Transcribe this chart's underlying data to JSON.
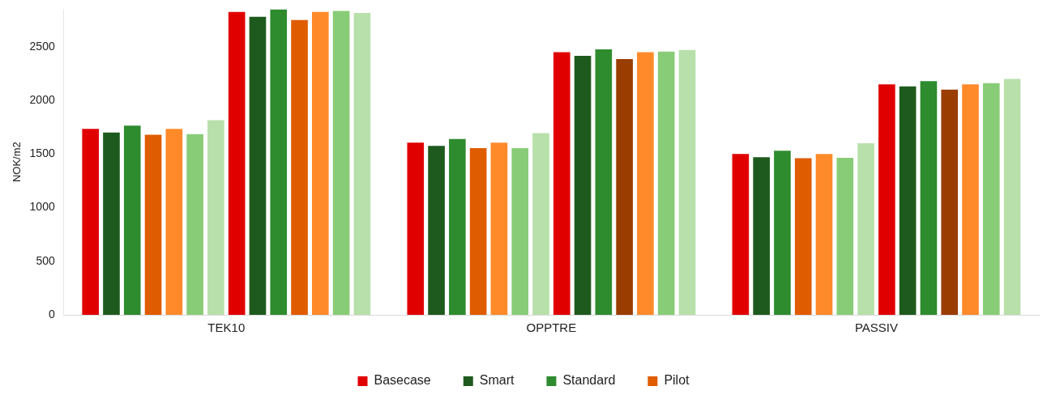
{
  "chart_data": {
    "type": "bar",
    "ylabel": "NOK/m2",
    "categories": [
      "TEK10",
      "OPPTRE",
      "PASSIV"
    ],
    "yticks": [
      0,
      500,
      1000,
      1500,
      2000,
      2500
    ],
    "grid": false,
    "legend": "bottom",
    "ylim": [
      0,
      2850
    ],
    "series": [
      {
        "name": "Basecase",
        "color": "#e00000",
        "values": [
          1735,
          1605,
          1500
        ]
      },
      {
        "name": "Smart",
        "color": "#1e5a1e",
        "values": [
          1700,
          1575,
          1470
        ]
      },
      {
        "name": "Standard",
        "color": "#2e8b2e",
        "values": [
          1765,
          1640,
          1530
        ]
      },
      {
        "name": "Pilot",
        "color": "#e05c00",
        "values": [
          1680,
          1555,
          1460
        ]
      },
      {
        "color": "#ff8a2a",
        "values": [
          1735,
          1605,
          1500
        ]
      },
      {
        "color": "#88cc77",
        "values": [
          1685,
          1555,
          1465
        ]
      },
      {
        "color": "#b8e0aa",
        "values": [
          1815,
          1695,
          1600
        ]
      },
      {
        "color": "#e00000",
        "values": [
          2825,
          2450,
          2150
        ]
      },
      {
        "color": "#1e5a1e",
        "values": [
          2780,
          2415,
          2130
        ]
      },
      {
        "color": "#2e8b2e",
        "values": [
          2850,
          2475,
          2180
        ]
      },
      {
        "colors": [
          "#e05c00",
          "#993d00",
          "#993d00"
        ],
        "values": [
          2750,
          2385,
          2100
        ]
      },
      {
        "color": "#ff8a2a",
        "values": [
          2825,
          2450,
          2150
        ]
      },
      {
        "color": "#88cc77",
        "values": [
          2835,
          2455,
          2160
        ]
      },
      {
        "color": "#b8e0aa",
        "values": [
          2815,
          2470,
          2200
        ]
      }
    ]
  }
}
